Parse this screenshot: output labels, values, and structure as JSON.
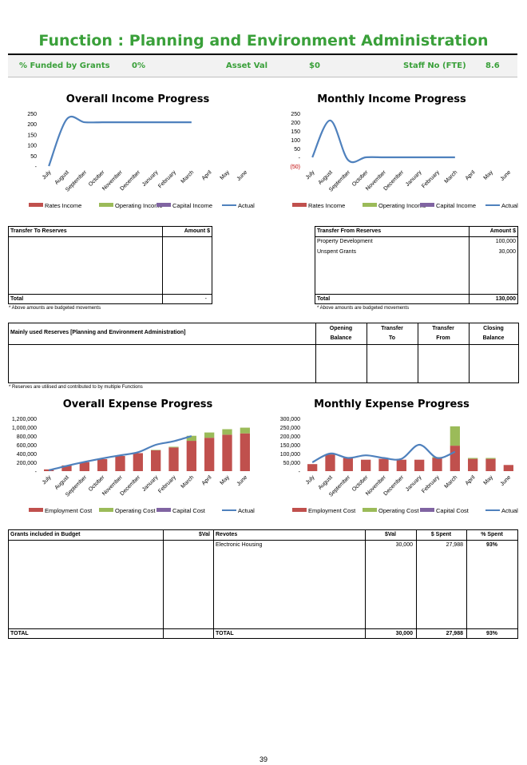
{
  "title": "Function : Planning and Environment Administration",
  "kpi": {
    "funded_label": "% Funded by Grants",
    "funded_value": "0%",
    "asset_label": "Asset Val",
    "asset_value": "$0",
    "staff_label": "Staff No (FTE)",
    "staff_value": "8.6"
  },
  "months": [
    "July",
    "August",
    "September",
    "October",
    "November",
    "December",
    "January",
    "February",
    "March",
    "April",
    "May",
    "June"
  ],
  "chart_data": [
    {
      "type": "line",
      "title": "Overall Income Progress",
      "categories": [
        "July",
        "August",
        "September",
        "October",
        "November",
        "December",
        "January",
        "February",
        "March",
        "April",
        "May",
        "June"
      ],
      "y_ticks": [
        "250",
        "200",
        "150",
        "100",
        "50",
        "-"
      ],
      "ylim": [
        0,
        250
      ],
      "legend": [
        "Rates Income",
        "Operating Income",
        "Capital Income",
        "Actual"
      ],
      "series": [
        {
          "name": "Actual",
          "values": [
            0,
            222,
            208,
            208,
            208,
            208,
            208,
            208,
            208,
            null,
            null,
            null
          ]
        }
      ]
    },
    {
      "type": "line",
      "title": "Monthly Income Progress",
      "categories": [
        "July",
        "August",
        "September",
        "October",
        "November",
        "December",
        "January",
        "February",
        "March",
        "April",
        "May",
        "June"
      ],
      "y_ticks": [
        "250",
        "200",
        "150",
        "100",
        "50",
        "-",
        "(50)"
      ],
      "ylim": [
        -50,
        250
      ],
      "legend": [
        "Rates Income",
        "Operating Income",
        "Capital Income",
        "Actual"
      ],
      "series": [
        {
          "name": "Actual",
          "values": [
            0,
            210,
            -15,
            0,
            0,
            0,
            0,
            0,
            0,
            null,
            null,
            null
          ]
        }
      ]
    },
    {
      "type": "bar",
      "title": "Overall Expense Progress",
      "categories": [
        "July",
        "August",
        "September",
        "October",
        "November",
        "December",
        "January",
        "February",
        "March",
        "April",
        "May",
        "June"
      ],
      "y_ticks": [
        "1,200,000",
        "1,000,000",
        "800,000",
        "600,000",
        "400,000",
        "200,000",
        "-"
      ],
      "ylim": [
        0,
        1200000
      ],
      "legend": [
        "Employment Cost",
        "Operating Cost",
        "Capital Cost",
        "Actual"
      ],
      "series": [
        {
          "name": "Employment Cost",
          "values": [
            40000,
            130000,
            205000,
            275000,
            345000,
            410000,
            475000,
            540000,
            690000,
            760000,
            830000,
            860000
          ]
        },
        {
          "name": "Operating Cost",
          "values": [
            0,
            0,
            0,
            0,
            0,
            0,
            10000,
            15000,
            115000,
            120000,
            125000,
            130000
          ]
        },
        {
          "name": "Actual",
          "values": [
            20000,
            120000,
            210000,
            290000,
            360000,
            430000,
            600000,
            680000,
            800000,
            null,
            null,
            null
          ]
        }
      ]
    },
    {
      "type": "bar",
      "title": "Monthly Expense Progress",
      "categories": [
        "July",
        "August",
        "September",
        "October",
        "November",
        "December",
        "January",
        "February",
        "March",
        "April",
        "May",
        "June"
      ],
      "y_ticks": [
        "300,000",
        "250,000",
        "200,000",
        "150,000",
        "100,000",
        "50,000",
        "-"
      ],
      "ylim": [
        0,
        300000
      ],
      "legend": [
        "Employment Cost",
        "Operating Cost",
        "Capital Cost",
        "Actual"
      ],
      "series": [
        {
          "name": "Employment Cost",
          "values": [
            40000,
            95000,
            75000,
            65000,
            70000,
            65000,
            65000,
            75000,
            145000,
            70000,
            70000,
            35000
          ]
        },
        {
          "name": "Operating Cost",
          "values": [
            0,
            0,
            0,
            0,
            0,
            0,
            0,
            5000,
            110000,
            5000,
            5000,
            0
          ]
        },
        {
          "name": "Actual",
          "values": [
            50000,
            100000,
            75000,
            90000,
            75000,
            70000,
            150000,
            75000,
            110000,
            null,
            null,
            null
          ]
        }
      ]
    }
  ],
  "transfer_to": {
    "header": "Transfer To Reserves",
    "amount_header": "Amount $",
    "total_label": "Total",
    "total_value": "-"
  },
  "transfer_from": {
    "header": "Transfer From Reserves",
    "amount_header": "Amount $",
    "rows": [
      {
        "name": "Property Development",
        "amount": "100,000"
      },
      {
        "name": "Unspent Grants",
        "amount": "30,000"
      }
    ],
    "total_label": "Total",
    "total_value": "130,000"
  },
  "budget_note": "* Above amounts are budgeted movements",
  "reserves": {
    "header": "Mainly used Reserves [Planning and Environment Administration]",
    "col1a": "Opening",
    "col1b": "Balance",
    "col2a": "Transfer",
    "col2b": "To",
    "col3a": "Transfer",
    "col3b": "From",
    "col4a": "Closing",
    "col4b": "Balance",
    "note": "* Reserves are utilised and contributed to by multiple Functions"
  },
  "grants": {
    "header": "Grants included in Budget",
    "val_header": "$Val",
    "revotes_header": "Revotes",
    "rv_val_header": "$Val",
    "spent_header": "$ Spent",
    "pct_header": "% Spent",
    "rows": [
      {
        "name": "Electronic Housing",
        "val": "30,000",
        "spent": "27,988",
        "pct": "93%"
      }
    ],
    "total_label": "TOTAL",
    "revotes_total_label": "TOTAL",
    "total_val": "30,000",
    "total_spent": "27,988",
    "total_pct": "93%"
  },
  "page_number": "39",
  "colors": {
    "title_green": "#3aa03a",
    "employment": "#c0504d",
    "operating": "#9bbb59",
    "capital": "#8064a2",
    "actual": "#4f81bd"
  }
}
